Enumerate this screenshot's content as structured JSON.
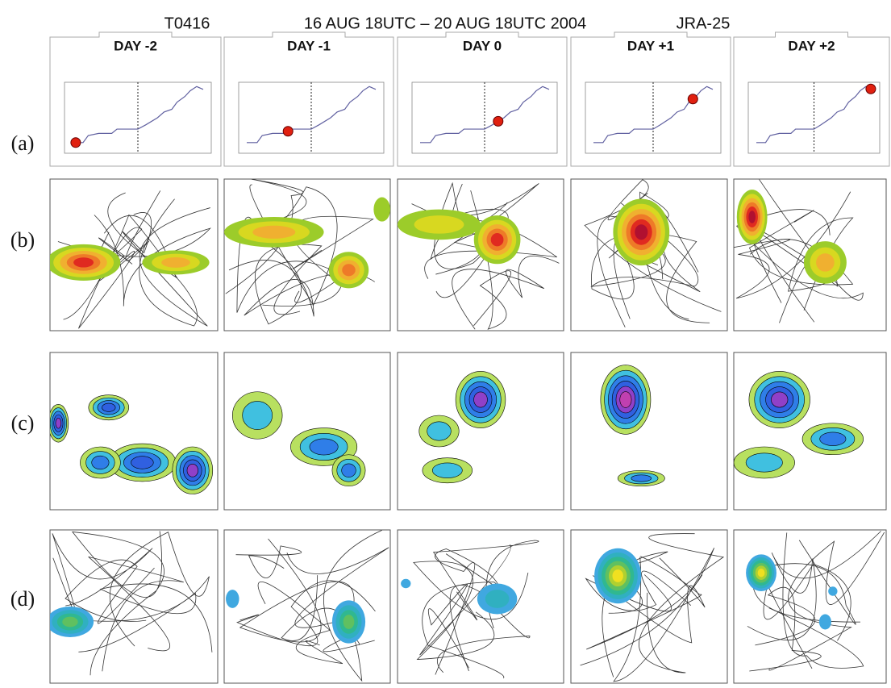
{
  "header": {
    "case": "T0416",
    "period": "16 AUG 18UTC – 20 AUG 18UTC  2004",
    "dataset": "JRA-25"
  },
  "columns": [
    "DAY -2",
    "DAY -1",
    "DAY 0",
    "DAY +1",
    "DAY +2"
  ],
  "rows": [
    "(a)",
    "(b)",
    "(c)",
    "(d)"
  ]
}
